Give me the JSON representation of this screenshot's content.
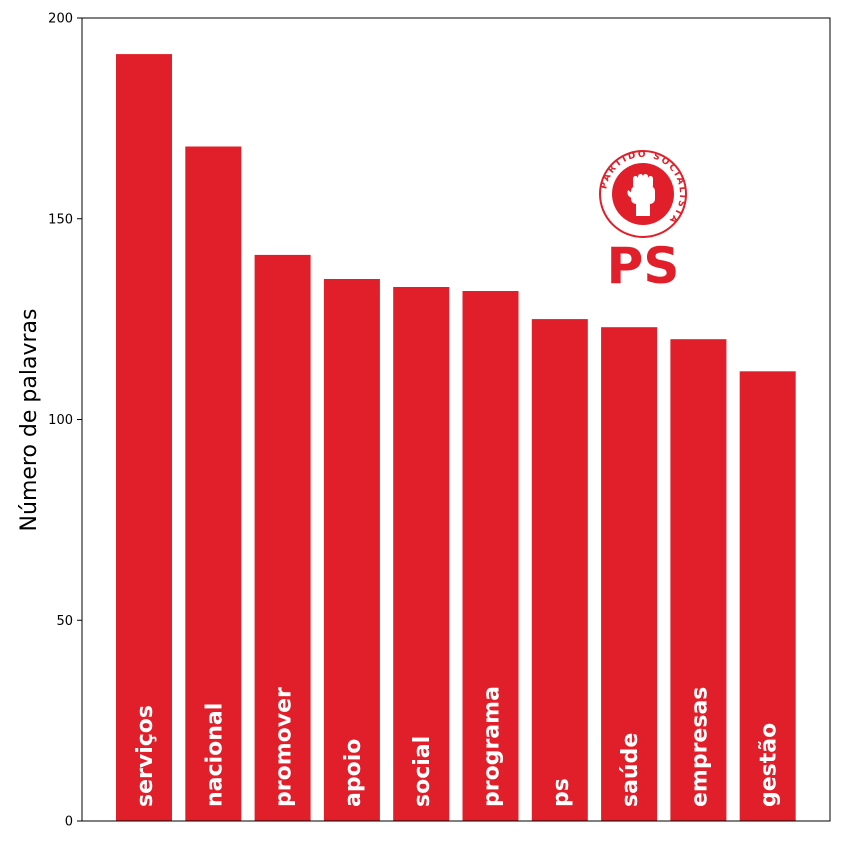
{
  "chart_data": {
    "type": "bar",
    "ylabel": "Número de palavras",
    "xlabel": "",
    "title": "",
    "ylim": [
      0,
      200
    ],
    "yticks": [
      0,
      50,
      100,
      150,
      200
    ],
    "bar_color": "#e01f2a",
    "categories": [
      "serviços",
      "nacional",
      "promover",
      "apoio",
      "social",
      "programa",
      "ps",
      "saúde",
      "empresas",
      "gestão"
    ],
    "values": [
      191,
      168,
      141,
      135,
      133,
      132,
      125,
      123,
      120,
      112
    ],
    "grid": false,
    "logo": {
      "ring_text": "PARTIDO SOCIALISTA",
      "wordmark": "PS",
      "color": "#e01f2a"
    }
  }
}
